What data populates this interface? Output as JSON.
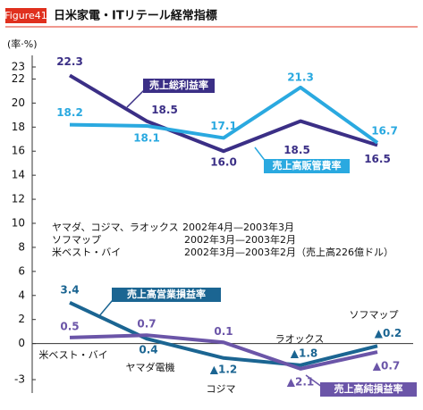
{
  "chart_data": {
    "type": "line",
    "badge": "Figure41",
    "title": "日米家電・ITリテール経常指標",
    "y_label": "(率·%)",
    "categories": [
      "米ベスト・バイ",
      "ヤマダ電機",
      "コジマ",
      "ラオックス",
      "ソフマップ"
    ],
    "ylim": [
      -3,
      23
    ],
    "yticks": [
      -3,
      0,
      2,
      4,
      6,
      8,
      10,
      12,
      14,
      16,
      18,
      20,
      22,
      23
    ],
    "notes": [
      [
        "ヤマダ、コジマ、ラオックス",
        "2002年4月—2003年3月"
      ],
      [
        "ソフマップ",
        "2002年3月—2003年2月"
      ],
      [
        "米ベスト・バイ",
        "2002年3月—2003年2月（売上高226億ドル）"
      ]
    ],
    "series": [
      {
        "name": "売上総利益率",
        "color": "#3b2f86",
        "values": [
          22.3,
          18.5,
          16.0,
          18.5,
          16.5
        ],
        "value_labels": [
          "22.3",
          "18.5",
          "16.0",
          "18.5",
          "16.5"
        ]
      },
      {
        "name": "売上高販管費率",
        "color": "#2aa9e0",
        "values": [
          18.2,
          18.1,
          17.1,
          21.3,
          16.7
        ],
        "value_labels": [
          "18.2",
          "18.1",
          "17.1",
          "21.3",
          "16.7"
        ]
      },
      {
        "name": "売上高営業損益率",
        "color": "#1b6592",
        "values": [
          3.4,
          0.4,
          -1.2,
          -1.8,
          -0.2
        ],
        "value_labels": [
          "3.4",
          "0.4",
          "▲1.2",
          "▲1.8",
          "▲0.2"
        ]
      },
      {
        "name": "売上高純損益率",
        "color": "#6b55a8",
        "values": [
          0.5,
          0.7,
          0.1,
          -2.1,
          -0.7
        ],
        "value_labels": [
          "0.5",
          "0.7",
          "0.1",
          "▲2.1",
          "▲0.7"
        ]
      }
    ]
  }
}
